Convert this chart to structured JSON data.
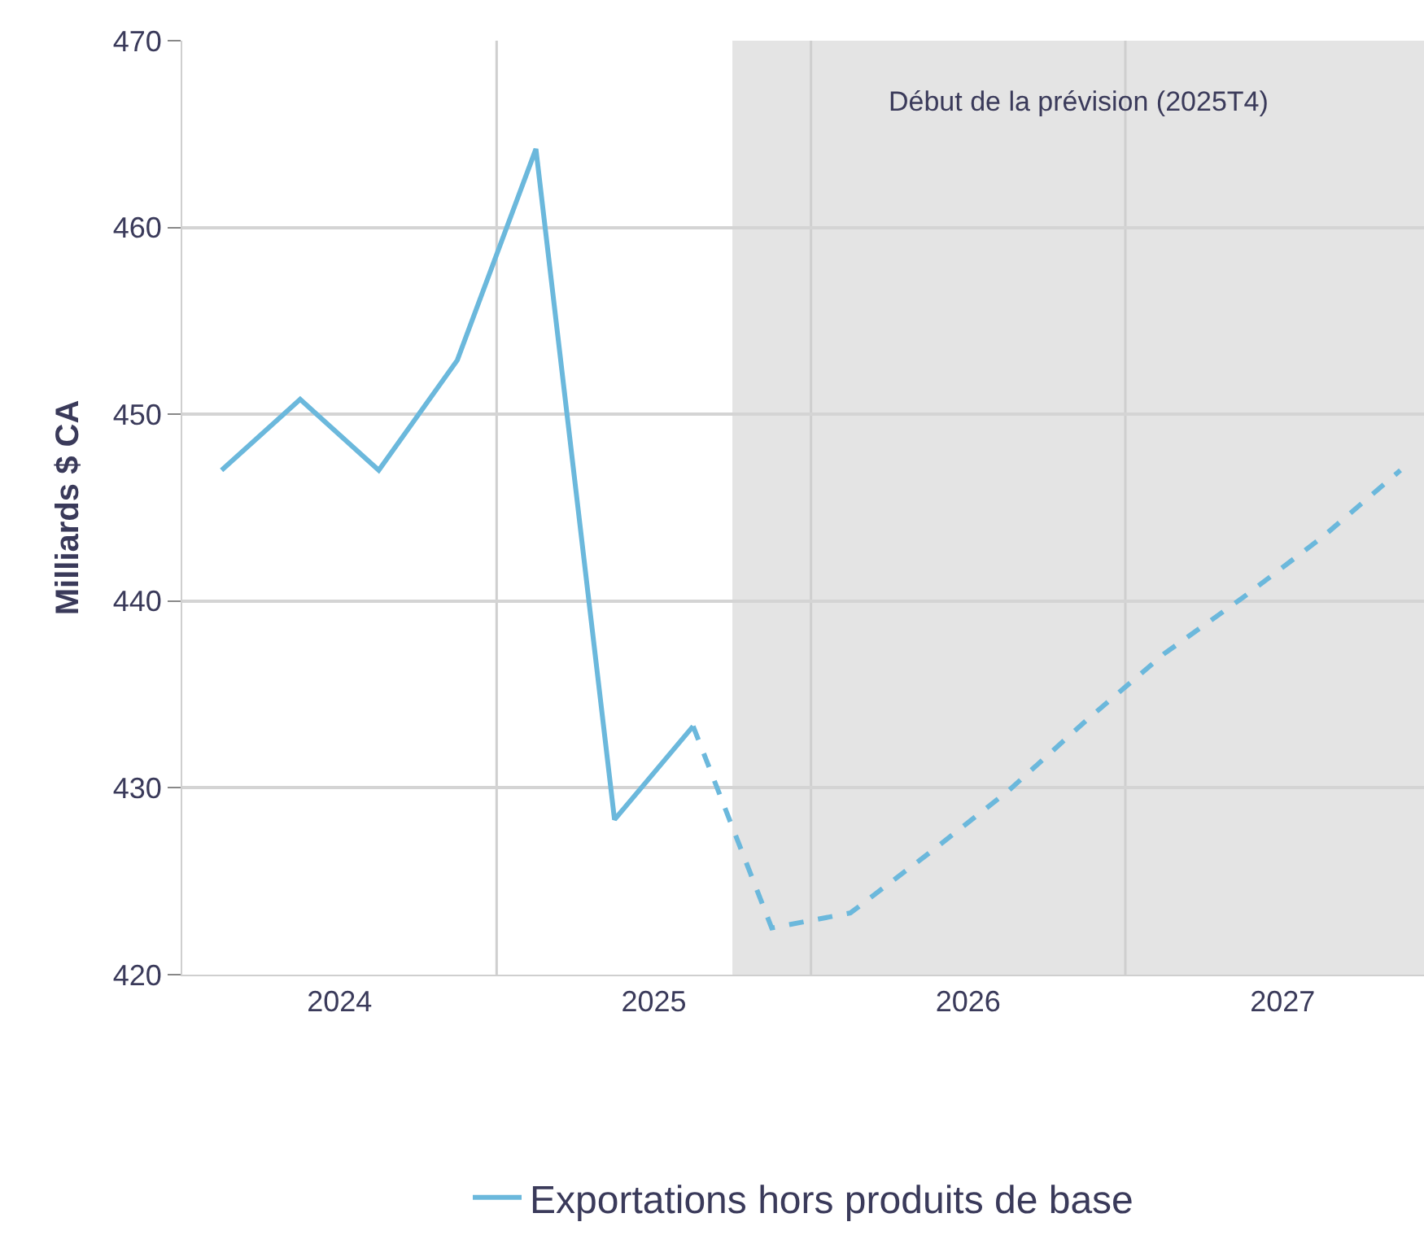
{
  "chart_data": {
    "type": "line",
    "ylabel": "Milliards $ CA",
    "xlim": [
      2024,
      2027.95
    ],
    "ylim": [
      420,
      470
    ],
    "xticks": [
      {
        "value": 2024.5,
        "label": "2024"
      },
      {
        "value": 2025.5,
        "label": "2025"
      },
      {
        "value": 2026.5,
        "label": "2026"
      },
      {
        "value": 2027.5,
        "label": "2027"
      },
      {
        "value": 2025,
        "label": null
      },
      {
        "value": 2026,
        "label": null
      },
      {
        "value": 2027,
        "label": null
      }
    ],
    "yticks": [
      420,
      430,
      440,
      450,
      460,
      470
    ],
    "grid": true,
    "legend": "bottom",
    "series": [
      {
        "name": "Exportations hors produits de base",
        "color": "#6bb8dc",
        "line_style": "solid",
        "x": [
          2024.125,
          2024.375,
          2024.625,
          2024.875,
          2025.125,
          2025.375,
          2025.625
        ],
        "values": [
          447.0,
          450.8,
          447.0,
          452.9,
          464.2,
          428.3,
          433.3
        ]
      },
      {
        "color": "#6bb8dc",
        "line_style": "dashed",
        "x": [
          2025.625,
          2025.875,
          2026.125,
          2026.375,
          2026.625,
          2026.875,
          2027.125,
          2027.375,
          2027.625,
          2027.875
        ],
        "values": [
          433.3,
          422.5,
          423.3,
          426.5,
          429.8,
          433.6,
          437.2,
          440.2,
          443.4,
          447.0
        ]
      }
    ],
    "bands": [
      {
        "axis": "x",
        "from": 2025.75,
        "to": 2027.95,
        "label": "Début de la prévision (2025T4)",
        "color": "#e4e4e4"
      }
    ]
  }
}
